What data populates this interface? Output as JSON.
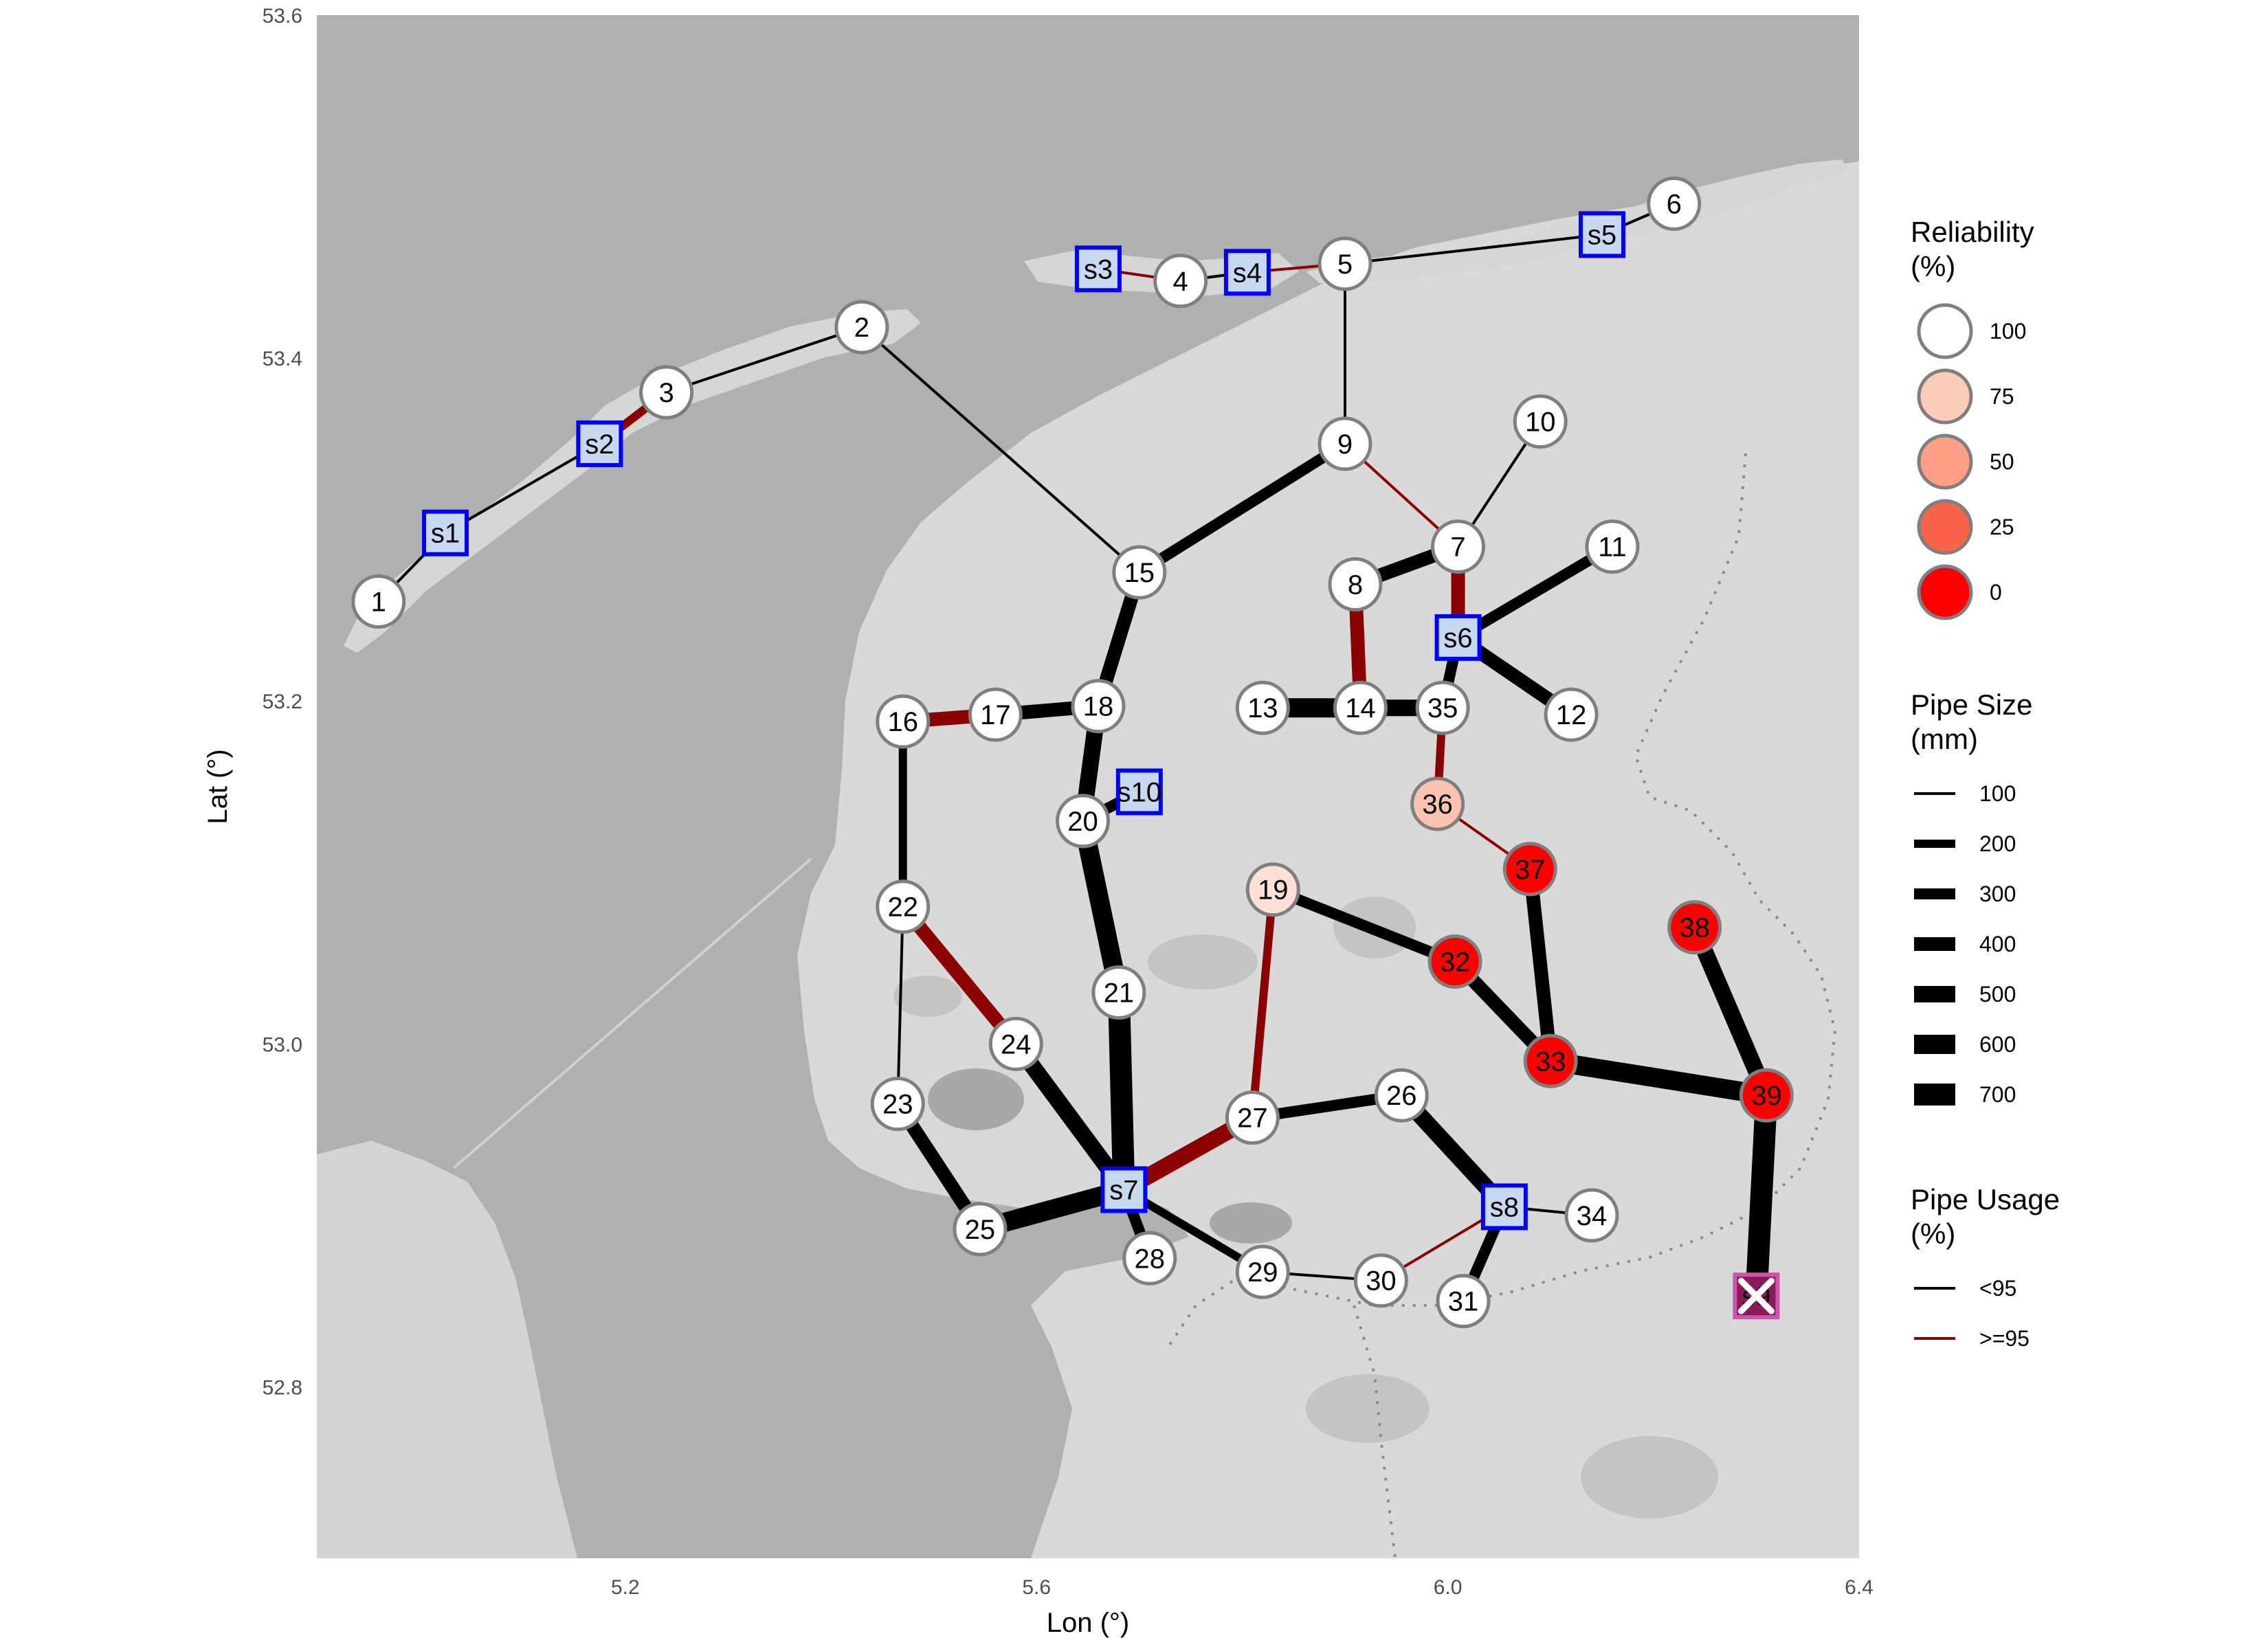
{
  "map": {
    "x_axis_title": "Lon (°)",
    "y_axis_title": "Lat (°)",
    "x_ticks": [
      "5.2",
      "5.6",
      "6.0",
      "6.4"
    ],
    "y_ticks": [
      "53.6",
      "53.4",
      "53.2",
      "53.0",
      "52.8"
    ],
    "lon_range": [
      4.9,
      6.4
    ],
    "lat_range": [
      52.7,
      53.6
    ]
  },
  "legend": {
    "reliability": {
      "title_line1": "Reliability",
      "title_line2": "(%)",
      "items": [
        {
          "label": "100",
          "color": "#ffffff"
        },
        {
          "label": "75",
          "color": "#fcccbb"
        },
        {
          "label": "50",
          "color": "#fc9f84"
        },
        {
          "label": "25",
          "color": "#f9644a"
        },
        {
          "label": "0",
          "color": "#ff0000"
        }
      ]
    },
    "pipe_size": {
      "title_line1": "Pipe Size",
      "title_line2": "(mm)",
      "items": [
        {
          "label": "100"
        },
        {
          "label": "200"
        },
        {
          "label": "300"
        },
        {
          "label": "400"
        },
        {
          "label": "500"
        },
        {
          "label": "600"
        },
        {
          "label": "700"
        }
      ]
    },
    "pipe_usage": {
      "title_line1": "Pipe Usage",
      "title_line2": "(%)",
      "items": [
        {
          "label": "<95",
          "color": "#000000"
        },
        {
          "label": ">=95",
          "color": "#8b0000"
        }
      ]
    }
  },
  "chart_data": {
    "type": "network-map",
    "x_axis_title": "Lon (°)",
    "y_axis_title": "Lat (°)",
    "xlim": [
      4.9,
      6.4
    ],
    "ylim": [
      52.7,
      53.6
    ],
    "colors": {
      "usage_low": "#000000",
      "usage_high": "#8b0000",
      "source_border": "#0000ff",
      "source_fill": "#c6d9f1",
      "failed_fill": "#8b1a5c"
    },
    "nodes": [
      {
        "id": "1",
        "lon": 4.96,
        "lat": 53.258,
        "reliability": 100
      },
      {
        "id": "2",
        "lon": 5.43,
        "lat": 53.418,
        "reliability": 100
      },
      {
        "id": "3",
        "lon": 5.24,
        "lat": 53.38,
        "reliability": 100
      },
      {
        "id": "4",
        "lon": 5.74,
        "lat": 53.445,
        "reliability": 100
      },
      {
        "id": "5",
        "lon": 5.9,
        "lat": 53.455,
        "reliability": 100
      },
      {
        "id": "6",
        "lon": 6.22,
        "lat": 53.49,
        "reliability": 100
      },
      {
        "id": "7",
        "lon": 6.01,
        "lat": 53.29,
        "reliability": 100
      },
      {
        "id": "8",
        "lon": 5.91,
        "lat": 53.268,
        "reliability": 100
      },
      {
        "id": "9",
        "lon": 5.9,
        "lat": 53.35,
        "reliability": 100
      },
      {
        "id": "10",
        "lon": 6.09,
        "lat": 53.363,
        "reliability": 100
      },
      {
        "id": "11",
        "lon": 6.16,
        "lat": 53.29,
        "reliability": 100
      },
      {
        "id": "12",
        "lon": 6.12,
        "lat": 53.192,
        "reliability": 100
      },
      {
        "id": "13",
        "lon": 5.82,
        "lat": 53.196,
        "reliability": 100
      },
      {
        "id": "14",
        "lon": 5.915,
        "lat": 53.196,
        "reliability": 100
      },
      {
        "id": "15",
        "lon": 5.7,
        "lat": 53.275,
        "reliability": 100
      },
      {
        "id": "16",
        "lon": 5.47,
        "lat": 53.188,
        "reliability": 100
      },
      {
        "id": "17",
        "lon": 5.56,
        "lat": 53.192,
        "reliability": 100
      },
      {
        "id": "18",
        "lon": 5.66,
        "lat": 53.197,
        "reliability": 100
      },
      {
        "id": "19",
        "lon": 5.83,
        "lat": 53.09,
        "reliability": 85
      },
      {
        "id": "20",
        "lon": 5.645,
        "lat": 53.13,
        "reliability": 100
      },
      {
        "id": "21",
        "lon": 5.68,
        "lat": 53.03,
        "reliability": 100
      },
      {
        "id": "22",
        "lon": 5.47,
        "lat": 53.08,
        "reliability": 100
      },
      {
        "id": "23",
        "lon": 5.465,
        "lat": 52.965,
        "reliability": 100
      },
      {
        "id": "24",
        "lon": 5.58,
        "lat": 53.0,
        "reliability": 100
      },
      {
        "id": "25",
        "lon": 5.545,
        "lat": 52.892,
        "reliability": 100
      },
      {
        "id": "26",
        "lon": 5.955,
        "lat": 52.97,
        "reliability": 100
      },
      {
        "id": "27",
        "lon": 5.81,
        "lat": 52.957,
        "reliability": 100
      },
      {
        "id": "28",
        "lon": 5.71,
        "lat": 52.875,
        "reliability": 100
      },
      {
        "id": "29",
        "lon": 5.82,
        "lat": 52.867,
        "reliability": 100
      },
      {
        "id": "30",
        "lon": 5.935,
        "lat": 52.862,
        "reliability": 100
      },
      {
        "id": "31",
        "lon": 6.015,
        "lat": 52.85,
        "reliability": 100
      },
      {
        "id": "32",
        "lon": 6.007,
        "lat": 53.048,
        "reliability": 0
      },
      {
        "id": "33",
        "lon": 6.1,
        "lat": 52.99,
        "reliability": 0
      },
      {
        "id": "34",
        "lon": 6.14,
        "lat": 52.9,
        "reliability": 100
      },
      {
        "id": "35",
        "lon": 5.995,
        "lat": 53.196,
        "reliability": 100
      },
      {
        "id": "36",
        "lon": 5.99,
        "lat": 53.14,
        "reliability": 70
      },
      {
        "id": "37",
        "lon": 6.08,
        "lat": 53.102,
        "reliability": 0
      },
      {
        "id": "38",
        "lon": 6.24,
        "lat": 53.068,
        "reliability": 0
      },
      {
        "id": "39",
        "lon": 6.31,
        "lat": 52.97,
        "reliability": 0
      }
    ],
    "sources": [
      {
        "id": "s1",
        "lon": 5.025,
        "lat": 53.298,
        "failed": false
      },
      {
        "id": "s2",
        "lon": 5.175,
        "lat": 53.35,
        "failed": false
      },
      {
        "id": "s3",
        "lon": 5.66,
        "lat": 53.452,
        "failed": false
      },
      {
        "id": "s4",
        "lon": 5.805,
        "lat": 53.45,
        "failed": false
      },
      {
        "id": "s5",
        "lon": 6.15,
        "lat": 53.472,
        "failed": false
      },
      {
        "id": "s6",
        "lon": 6.01,
        "lat": 53.237,
        "failed": false
      },
      {
        "id": "s7",
        "lon": 5.685,
        "lat": 52.915,
        "failed": false
      },
      {
        "id": "s8",
        "lon": 6.055,
        "lat": 52.905,
        "failed": false
      },
      {
        "id": "s9",
        "lon": 6.3,
        "lat": 52.853,
        "failed": true
      },
      {
        "id": "s10",
        "lon": 5.7,
        "lat": 53.147,
        "failed": false
      }
    ],
    "pipes": [
      {
        "from": "1",
        "to": "s1",
        "size": 100,
        "usage": "<95"
      },
      {
        "from": "s1",
        "to": "s2",
        "size": 100,
        "usage": "<95"
      },
      {
        "from": "s2",
        "to": "3",
        "size": 200,
        "usage": ">=95"
      },
      {
        "from": "3",
        "to": "2",
        "size": 100,
        "usage": "<95"
      },
      {
        "from": "2",
        "to": "15",
        "size": 100,
        "usage": "<95"
      },
      {
        "from": "s3",
        "to": "4",
        "size": 100,
        "usage": ">=95"
      },
      {
        "from": "4",
        "to": "s4",
        "size": 100,
        "usage": "<95"
      },
      {
        "from": "s4",
        "to": "5",
        "size": 100,
        "usage": ">=95"
      },
      {
        "from": "5",
        "to": "s5",
        "size": 100,
        "usage": "<95"
      },
      {
        "from": "s5",
        "to": "6",
        "size": 100,
        "usage": "<95"
      },
      {
        "from": "5",
        "to": "9",
        "size": 100,
        "usage": "<95"
      },
      {
        "from": "9",
        "to": "7",
        "size": 100,
        "usage": ">=95"
      },
      {
        "from": "9",
        "to": "15",
        "size": 300,
        "usage": "<95"
      },
      {
        "from": "10",
        "to": "7",
        "size": 100,
        "usage": "<95"
      },
      {
        "from": "8",
        "to": "7",
        "size": 400,
        "usage": "<95"
      },
      {
        "from": "7",
        "to": "s6",
        "size": 400,
        "usage": ">=95"
      },
      {
        "from": "s6",
        "to": "11",
        "size": 300,
        "usage": "<95"
      },
      {
        "from": "s6",
        "to": "12",
        "size": 400,
        "usage": "<95"
      },
      {
        "from": "s6",
        "to": "35",
        "size": 300,
        "usage": "<95"
      },
      {
        "from": "8",
        "to": "14",
        "size": 400,
        "usage": ">=95"
      },
      {
        "from": "13",
        "to": "14",
        "size": 600,
        "usage": "<95"
      },
      {
        "from": "14",
        "to": "35",
        "size": 500,
        "usage": "<95"
      },
      {
        "from": "35",
        "to": "36",
        "size": 200,
        "usage": ">=95"
      },
      {
        "from": "36",
        "to": "37",
        "size": 100,
        "usage": ">=95"
      },
      {
        "from": "37",
        "to": "33",
        "size": 400,
        "usage": "<95"
      },
      {
        "from": "19",
        "to": "32",
        "size": 300,
        "usage": "<95"
      },
      {
        "from": "32",
        "to": "33",
        "size": 400,
        "usage": "<95"
      },
      {
        "from": "33",
        "to": "39",
        "size": 600,
        "usage": "<95"
      },
      {
        "from": "38",
        "to": "39",
        "size": 500,
        "usage": "<95"
      },
      {
        "from": "39",
        "to": "s9",
        "size": 700,
        "usage": "<95"
      },
      {
        "from": "15",
        "to": "18",
        "size": 400,
        "usage": "<95"
      },
      {
        "from": "16",
        "to": "17",
        "size": 400,
        "usage": ">=95"
      },
      {
        "from": "17",
        "to": "18",
        "size": 400,
        "usage": "<95"
      },
      {
        "from": "18",
        "to": "20",
        "size": 500,
        "usage": "<95"
      },
      {
        "from": "20",
        "to": "s10",
        "size": 300,
        "usage": "<95"
      },
      {
        "from": "20",
        "to": "21",
        "size": 600,
        "usage": "<95"
      },
      {
        "from": "21",
        "to": "s7",
        "size": 700,
        "usage": "<95"
      },
      {
        "from": "16",
        "to": "22",
        "size": 200,
        "usage": "<95"
      },
      {
        "from": "22",
        "to": "24",
        "size": 400,
        "usage": ">=95"
      },
      {
        "from": "22",
        "to": "23",
        "size": 100,
        "usage": "<95"
      },
      {
        "from": "24",
        "to": "s7",
        "size": 500,
        "usage": "<95"
      },
      {
        "from": "23",
        "to": "25",
        "size": 400,
        "usage": "<95"
      },
      {
        "from": "25",
        "to": "s7",
        "size": 600,
        "usage": "<95"
      },
      {
        "from": "s7",
        "to": "27",
        "size": 500,
        "usage": ">=95"
      },
      {
        "from": "27",
        "to": "19",
        "size": 200,
        "usage": ">=95"
      },
      {
        "from": "27",
        "to": "26",
        "size": 300,
        "usage": "<95"
      },
      {
        "from": "26",
        "to": "s8",
        "size": 500,
        "usage": "<95"
      },
      {
        "from": "s8",
        "to": "34",
        "size": 100,
        "usage": "<95"
      },
      {
        "from": "s8",
        "to": "31",
        "size": 300,
        "usage": "<95"
      },
      {
        "from": "30",
        "to": "s8",
        "size": 100,
        "usage": ">=95"
      },
      {
        "from": "29",
        "to": "30",
        "size": 100,
        "usage": "<95"
      },
      {
        "from": "s7",
        "to": "29",
        "size": 200,
        "usage": "<95"
      },
      {
        "from": "s7",
        "to": "28",
        "size": 300,
        "usage": "<95"
      }
    ]
  }
}
